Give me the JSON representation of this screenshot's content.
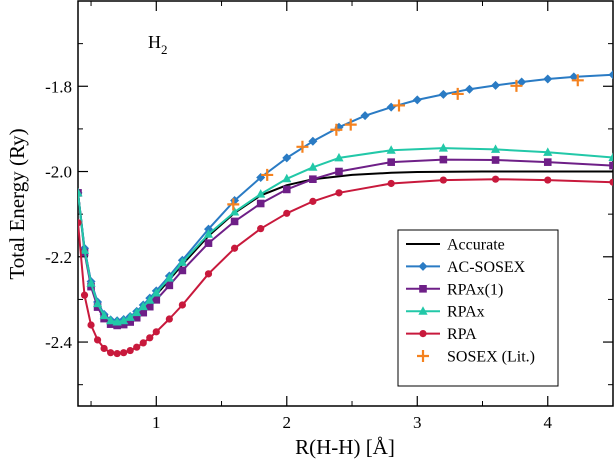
{
  "chart_data": {
    "type": "line",
    "xlabel": "R(H-H) [Å]",
    "ylabel": "Total Energy (Ry)",
    "xlim": [
      0.4,
      4.5
    ],
    "ylim": [
      -2.55,
      -1.6
    ],
    "xticks": [
      1,
      2,
      3,
      4
    ],
    "xtick_labels": [
      "1",
      "2",
      "3",
      "4"
    ],
    "yticks": [
      -2.4,
      -2.2,
      -2.0,
      -1.8
    ],
    "ytick_labels": [
      "-2.4",
      "-2.2",
      "-2.0",
      "-1.8"
    ],
    "annotation": {
      "main": "H",
      "sub": "2"
    },
    "legend_position": "lower-right",
    "series": [
      {
        "name": "Accurate",
        "color": "#000000",
        "marker": "none",
        "x": [
          0.4,
          0.45,
          0.5,
          0.55,
          0.6,
          0.65,
          0.7,
          0.741,
          0.8,
          0.9,
          1.0,
          1.1,
          1.2,
          1.4,
          1.6,
          1.8,
          2.0,
          2.2,
          2.5,
          2.8,
          3.0,
          3.5,
          4.0,
          4.5
        ],
        "y": [
          -2.05,
          -2.182,
          -2.26,
          -2.31,
          -2.337,
          -2.35,
          -2.353,
          -2.349,
          -2.342,
          -2.32,
          -2.289,
          -2.254,
          -2.218,
          -2.151,
          -2.097,
          -2.056,
          -2.032,
          -2.018,
          -2.008,
          -2.003,
          -2.001,
          -2.0,
          -2.0,
          -2.0
        ]
      },
      {
        "name": "AC-SOSEX",
        "color": "#2a7bc4",
        "marker": "diamond",
        "x": [
          0.4,
          0.45,
          0.5,
          0.55,
          0.6,
          0.65,
          0.7,
          0.75,
          0.8,
          0.85,
          0.9,
          0.95,
          1.0,
          1.1,
          1.2,
          1.4,
          1.6,
          1.8,
          2.0,
          2.2,
          2.4,
          2.6,
          2.8,
          3.0,
          3.2,
          3.4,
          3.6,
          3.8,
          4.0,
          4.2,
          4.5
        ],
        "y": [
          -2.05,
          -2.18,
          -2.258,
          -2.306,
          -2.335,
          -2.348,
          -2.35,
          -2.347,
          -2.34,
          -2.328,
          -2.313,
          -2.297,
          -2.28,
          -2.245,
          -2.208,
          -2.135,
          -2.068,
          -2.014,
          -1.968,
          -1.929,
          -1.896,
          -1.869,
          -1.849,
          -1.832,
          -1.819,
          -1.807,
          -1.798,
          -1.79,
          -1.783,
          -1.778,
          -1.773
        ]
      },
      {
        "name": "RPAx(1)",
        "color": "#6e1f87",
        "marker": "square",
        "x": [
          0.4,
          0.45,
          0.5,
          0.55,
          0.6,
          0.65,
          0.7,
          0.75,
          0.8,
          0.85,
          0.9,
          0.95,
          1.0,
          1.1,
          1.2,
          1.4,
          1.6,
          1.8,
          2.0,
          2.2,
          2.4,
          2.8,
          3.2,
          3.6,
          4.0,
          4.5
        ],
        "y": [
          -2.05,
          -2.19,
          -2.27,
          -2.318,
          -2.345,
          -2.358,
          -2.361,
          -2.359,
          -2.353,
          -2.343,
          -2.331,
          -2.317,
          -2.301,
          -2.267,
          -2.232,
          -2.168,
          -2.117,
          -2.075,
          -2.042,
          -2.018,
          -2.0,
          -1.978,
          -1.972,
          -1.973,
          -1.978,
          -1.986
        ]
      },
      {
        "name": "RPAx",
        "color": "#22c8a8",
        "marker": "triangle",
        "x": [
          0.4,
          0.45,
          0.5,
          0.55,
          0.6,
          0.65,
          0.7,
          0.75,
          0.8,
          0.85,
          0.9,
          0.95,
          1.0,
          1.1,
          1.2,
          1.4,
          1.6,
          1.8,
          2.0,
          2.2,
          2.4,
          2.8,
          3.2,
          3.6,
          4.0,
          4.5
        ],
        "y": [
          -2.05,
          -2.185,
          -2.262,
          -2.31,
          -2.338,
          -2.35,
          -2.353,
          -2.35,
          -2.342,
          -2.331,
          -2.317,
          -2.302,
          -2.285,
          -2.25,
          -2.213,
          -2.147,
          -2.095,
          -2.053,
          -2.017,
          -1.99,
          -1.968,
          -1.95,
          -1.945,
          -1.948,
          -1.955,
          -1.967
        ]
      },
      {
        "name": "RPA",
        "color": "#c8193c",
        "marker": "circle",
        "x": [
          0.4,
          0.45,
          0.5,
          0.55,
          0.6,
          0.65,
          0.7,
          0.75,
          0.8,
          0.85,
          0.9,
          0.95,
          1.0,
          1.1,
          1.2,
          1.4,
          1.6,
          1.8,
          2.0,
          2.2,
          2.4,
          2.8,
          3.2,
          3.6,
          4.0,
          4.5
        ],
        "y": [
          -2.12,
          -2.29,
          -2.36,
          -2.395,
          -2.415,
          -2.425,
          -2.427,
          -2.425,
          -2.42,
          -2.412,
          -2.402,
          -2.39,
          -2.376,
          -2.346,
          -2.313,
          -2.24,
          -2.18,
          -2.134,
          -2.098,
          -2.07,
          -2.05,
          -2.028,
          -2.02,
          -2.018,
          -2.02,
          -2.025
        ]
      },
      {
        "name": "SOSEX (Lit.)",
        "color": "#f5821f",
        "marker": "plus",
        "line": false,
        "x": [
          1.59,
          1.85,
          2.12,
          2.38,
          2.49,
          2.86,
          3.31,
          3.76,
          4.23
        ],
        "y": [
          -2.077,
          -2.008,
          -1.942,
          -1.902,
          -1.89,
          -1.845,
          -1.818,
          -1.799,
          -1.786
        ]
      }
    ]
  }
}
